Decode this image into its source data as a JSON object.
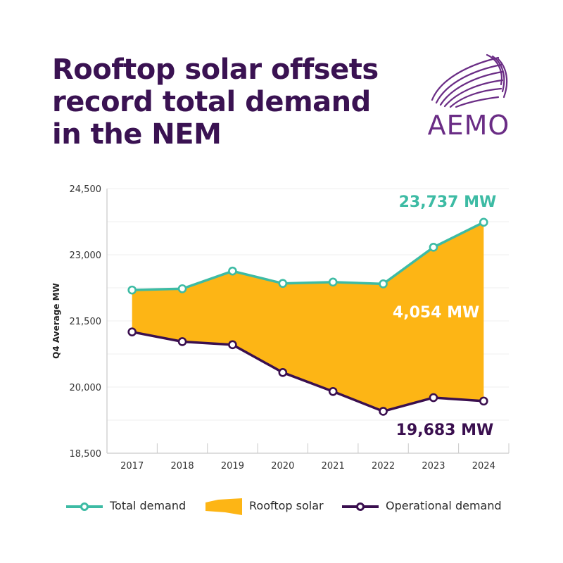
{
  "header": {
    "title_lines": [
      "Rooftop solar offsets",
      "record total demand",
      "in the NEM"
    ]
  },
  "logo": {
    "text": "AEMO"
  },
  "colors": {
    "title": "#3a1252",
    "total": "#3dbba4",
    "operational": "#3a0f4f",
    "solar": "#fdb515",
    "axis": "#c9c9c9",
    "grid": "#efefef",
    "tick_text": "#333333"
  },
  "chart_data": {
    "type": "line",
    "title": "Rooftop solar offsets record total demand in the NEM",
    "xlabel": "",
    "ylabel": "Q4 Average MW",
    "ylim": [
      18500,
      24500
    ],
    "yticks": [
      18500,
      20000,
      21500,
      23000,
      24500
    ],
    "ytick_labels": [
      "18,500",
      "20,000",
      "21,500",
      "23,000",
      "24,500"
    ],
    "categories": [
      "2017",
      "2018",
      "2019",
      "2020",
      "2021",
      "2022",
      "2023",
      "2024"
    ],
    "series": [
      {
        "name": "Total demand",
        "values": [
          22200,
          22230,
          22630,
          22350,
          22380,
          22340,
          23170,
          23737
        ]
      },
      {
        "name": "Operational demand",
        "values": [
          21250,
          21030,
          20960,
          20330,
          19900,
          19450,
          19760,
          19683
        ]
      }
    ],
    "area": {
      "name": "Rooftop solar",
      "between": [
        "Total demand",
        "Operational demand"
      ]
    },
    "annotations": {
      "total_last": "23,737 MW",
      "solar_gap": "4,054 MW",
      "operational_last": "19,683 MW"
    },
    "legend": {
      "position": "bottom",
      "items": [
        "Total demand",
        "Rooftop solar",
        "Operational demand"
      ]
    }
  }
}
